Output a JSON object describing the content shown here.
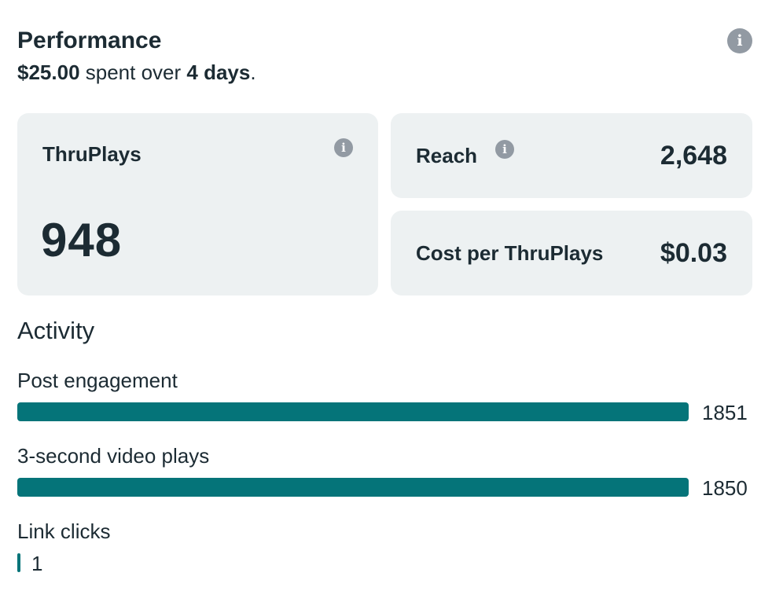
{
  "header": {
    "title": "Performance",
    "spent_amount": "$25.00",
    "spent_text": " spent over ",
    "duration": "4 days",
    "period": ".",
    "info_icon": "info-icon"
  },
  "metrics": {
    "thruplays": {
      "label": "ThruPlays",
      "value": "948",
      "info_icon": "info-icon"
    },
    "reach": {
      "label": "Reach",
      "value": "2,648",
      "info_icon": "info-icon"
    },
    "cost_per": {
      "label": "Cost per ThruPlays",
      "value": "$0.03"
    }
  },
  "activity": {
    "title": "Activity",
    "max": 1851,
    "rows": [
      {
        "label": "Post engagement",
        "value": 1851,
        "display": "1851"
      },
      {
        "label": "3-second video plays",
        "value": 1850,
        "display": "1850"
      },
      {
        "label": "Link clicks",
        "value": 1,
        "display": "1"
      }
    ]
  },
  "colors": {
    "bar": "#057479",
    "card_bg": "#edf1f2",
    "icon": "#929aa3",
    "text": "#1c2b33"
  }
}
